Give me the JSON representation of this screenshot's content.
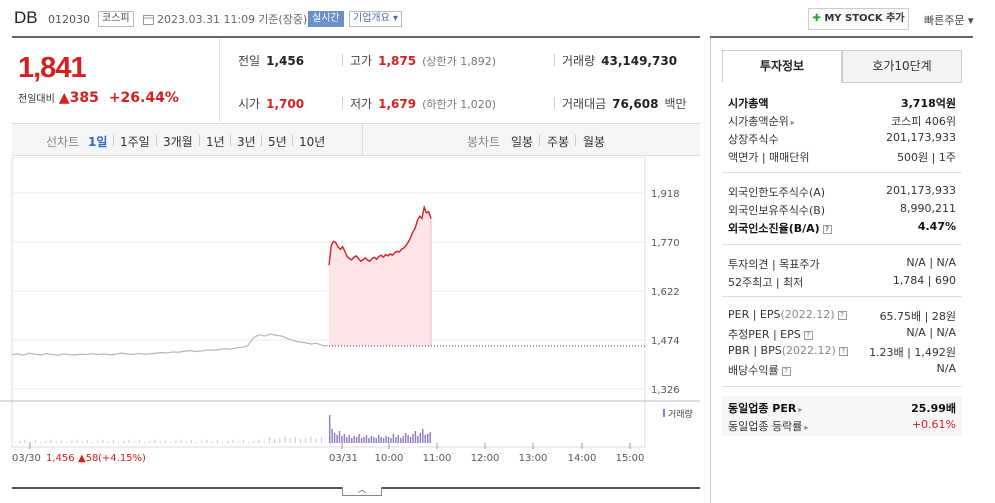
{
  "header": {
    "name": "DB",
    "code": "012030",
    "market": "코스피",
    "datetime": "2023.03.31 11:09",
    "basis": "기준(장중)",
    "realtime": "실시간",
    "company_info": "기업개요",
    "mystock": "MY STOCK 추가",
    "quick_order": "빠른주문"
  },
  "price": {
    "current": "1,841",
    "change_label": "전일대비",
    "change": "385",
    "change_pct": "+26.44%"
  },
  "stats": {
    "prev_label": "전일",
    "prev": "1,456",
    "high_label": "고가",
    "high": "1,875",
    "upper_limit": "(상한가 1,892)",
    "volume_label": "거래량",
    "volume": "43,149,730",
    "open_label": "시가",
    "open": "1,700",
    "low_label": "저가",
    "low": "1,679",
    "lower_limit": "(하한가 1,020)",
    "amount_label": "거래대금",
    "amount": "76,608",
    "amount_unit": "백만"
  },
  "period_bar": {
    "select_label": "선차트",
    "periods": [
      "1일",
      "1주일",
      "3개월",
      "1년",
      "3년",
      "5년",
      "10년"
    ],
    "selected": "1일",
    "candle_label": "봉차트",
    "candles": [
      "일봉",
      "주봉",
      "월봉"
    ]
  },
  "chart_data": {
    "type": "line",
    "y_ticks": [
      "1,918",
      "1,770",
      "1,622",
      "1,474",
      "1,326"
    ],
    "ylim": [
      1326,
      1918
    ],
    "x_ticks": [
      "03/30",
      "03/31",
      "10:00",
      "11:00",
      "12:00",
      "13:00",
      "14:00",
      "15:00"
    ],
    "prev_day_summary": {
      "date": "03/30",
      "close": "1,456",
      "change": "58",
      "pct": "(+4.15%)"
    },
    "volume_label": "거래량",
    "prev_close_ref": 1456,
    "series": [
      {
        "session": "03/30",
        "values": [
          1430,
          1432,
          1428,
          1434,
          1431,
          1429,
          1433,
          1430,
          1428,
          1432,
          1430,
          1429,
          1431,
          1430,
          1433,
          1430,
          1432,
          1429,
          1431,
          1434,
          1432,
          1430,
          1433,
          1431,
          1432,
          1434,
          1436,
          1435,
          1438,
          1437,
          1440,
          1442,
          1439,
          1441,
          1444,
          1443,
          1445,
          1448,
          1446,
          1450,
          1452,
          1456,
          1480,
          1490,
          1486,
          1492,
          1488,
          1486,
          1478,
          1472,
          1468,
          1466,
          1462,
          1464,
          1458,
          1456
        ]
      },
      {
        "session": "03/31",
        "values": [
          1700,
          1760,
          1772,
          1768,
          1755,
          1748,
          1756,
          1742,
          1726,
          1720,
          1716,
          1724,
          1728,
          1720,
          1712,
          1716,
          1722,
          1716,
          1712,
          1720,
          1724,
          1718,
          1726,
          1730,
          1724,
          1732,
          1728,
          1734,
          1730,
          1738,
          1742,
          1740,
          1748,
          1752,
          1760,
          1770,
          1784,
          1800,
          1812,
          1835,
          1848,
          1841,
          1875,
          1858,
          1862,
          1841
        ]
      }
    ]
  },
  "side": {
    "tab_invest": "투자정보",
    "tab_orderbook": "호가10단계",
    "g1": [
      {
        "k": "시가총액",
        "v": "3,718억원",
        "bold": true
      },
      {
        "k": "시가총액순위",
        "v": "코스피 406위"
      },
      {
        "k": "상장주식수",
        "v": "201,173,933"
      },
      {
        "k": "액면가 | 매매단위",
        "v": "500원 | 1주"
      }
    ],
    "g2": [
      {
        "k": "외국인한도주식수(A)",
        "v": "201,173,933"
      },
      {
        "k": "외국인보유주식수(B)",
        "v": "8,990,211"
      },
      {
        "k": "외국인소진율(B/A)",
        "v": "4.47%",
        "bold": true
      }
    ],
    "g3": [
      {
        "k": "투자의견 | 목표주가",
        "v": "N/A | N/A"
      },
      {
        "k": "52주최고 | 최저",
        "v": "1,784 | 690"
      }
    ],
    "g4": [
      {
        "k": "PER | EPS",
        "k2": "(2022.12)",
        "v": "65.75배 | 28원"
      },
      {
        "k": "추정PER | EPS",
        "v": "N/A | N/A"
      },
      {
        "k": "PBR | BPS",
        "k2": "(2022.12)",
        "v": "1.23배 | 1,492원"
      },
      {
        "k": "배당수익률",
        "v": "N/A"
      }
    ],
    "g5": [
      {
        "k": "동일업종 PER",
        "v": "25.99배",
        "bold": true
      },
      {
        "k": "동일업종 등락률",
        "v": "+0.61%",
        "red": true
      }
    ]
  },
  "colors": {
    "up": "#d42020",
    "accent": "#3466c4",
    "area": "#fde4e6",
    "prev_line": "#b5b5b5",
    "volume": "#8c78c2"
  }
}
